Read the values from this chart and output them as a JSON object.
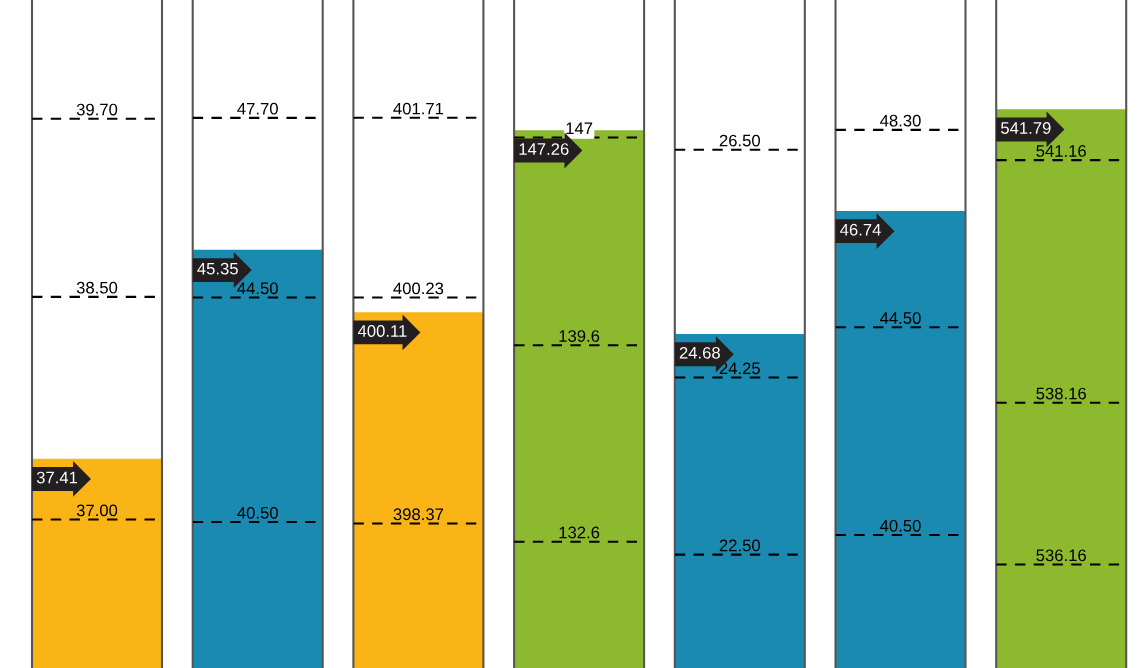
{
  "chart_data": [
    {
      "type": "bar",
      "categories": [
        null
      ],
      "values": [
        37.41
      ],
      "colors": [
        "#fbb416"
      ],
      "ylim": [
        36.0,
        40.5
      ],
      "yticks": [
        {
          "value": 37,
          "label": "37.00"
        },
        {
          "value": 38.5,
          "label": "38.50"
        },
        {
          "value": 39.7,
          "label": "39.70"
        }
      ],
      "grid": "y",
      "data_labels": true,
      "tick_labels": "y"
    },
    {
      "type": "bar",
      "categories": [
        null
      ],
      "values": [
        45.35
      ],
      "colors": [
        "#1a8ab0"
      ],
      "ylim": [
        37.9,
        49.8
      ],
      "yticks": [
        {
          "value": 40.5,
          "label": "40.50"
        },
        {
          "value": 44.5,
          "label": "44.50"
        },
        {
          "value": 47.7,
          "label": "47.70"
        }
      ],
      "grid": "y",
      "data_labels": true,
      "tick_labels": "y"
    },
    {
      "type": "bar",
      "categories": [
        null
      ],
      "values": [
        400.11
      ],
      "colors": [
        "#fbb416"
      ],
      "ylim": [
        397.18,
        402.68
      ],
      "yticks": [
        {
          "value": 398.37,
          "label": "398.37"
        },
        {
          "value": 400.23,
          "label": "400.23"
        },
        {
          "value": 401.71,
          "label": "401.71"
        }
      ],
      "grid": "y",
      "data_labels": true,
      "tick_labels": "y"
    },
    {
      "type": "bar",
      "categories": [
        null
      ],
      "values": [
        147.26
      ],
      "colors": [
        "#8db92e"
      ],
      "ylim": [
        128.1,
        151.9
      ],
      "yticks": [
        132.6,
        139.6,
        147
      ],
      "grid": "y",
      "data_labels": true,
      "tick_labels": "y"
    },
    {
      "type": "bar",
      "categories": [
        null
      ],
      "values": [
        24.68
      ],
      "colors": [
        "#1a8ab0"
      ],
      "ylim": [
        21.38,
        27.98
      ],
      "yticks": [
        {
          "value": 22.5,
          "label": "22.50"
        },
        {
          "value": 24.25,
          "label": "24.25"
        },
        {
          "value": 26.5,
          "label": "26.50"
        }
      ],
      "grid": "y",
      "data_labels": true,
      "tick_labels": "y"
    },
    {
      "type": "bar",
      "categories": [
        null
      ],
      "values": [
        46.74
      ],
      "colors": [
        "#1a8ab0"
      ],
      "ylim": [
        37.94,
        50.8
      ],
      "yticks": [
        {
          "value": 40.5,
          "label": "40.50"
        },
        {
          "value": 44.5,
          "label": "44.50"
        },
        {
          "value": 48.3,
          "label": "48.30"
        }
      ],
      "grid": "y",
      "data_labels": true,
      "tick_labels": "y"
    },
    {
      "type": "bar",
      "categories": [
        null
      ],
      "values": [
        541.79
      ],
      "colors": [
        "#8db92e"
      ],
      "ylim": [
        534.88,
        543.14
      ],
      "yticks": [
        536.16,
        538.16,
        541.16
      ],
      "grid": "y",
      "data_labels": true,
      "tick_labels": "y"
    }
  ]
}
